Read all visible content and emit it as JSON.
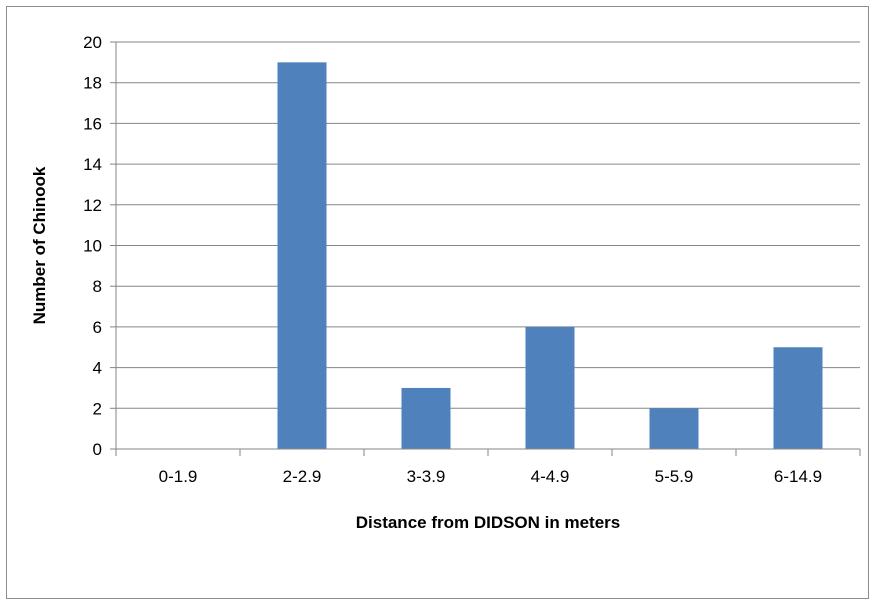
{
  "chart_data": {
    "type": "bar",
    "title": "",
    "xlabel": "Distance from DIDSON in meters",
    "ylabel": "Number of Chinook",
    "categories": [
      "0-1.9",
      "2-2.9",
      "3-3.9",
      "4-4.9",
      "5-5.9",
      "6-14.9"
    ],
    "values": [
      0,
      19,
      3,
      6,
      2,
      5
    ],
    "ylim": [
      0,
      20
    ],
    "yticks": [
      0,
      2,
      4,
      6,
      8,
      10,
      12,
      14,
      16,
      18,
      20
    ],
    "grid": true,
    "legend": "none",
    "bar_color": "#4f81bd",
    "grid_color": "#868686"
  }
}
